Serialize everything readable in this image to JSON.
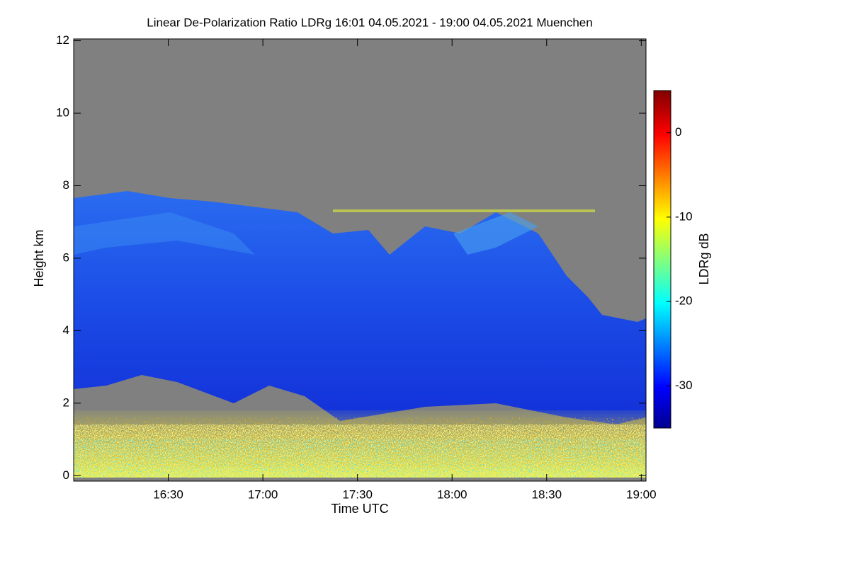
{
  "chart_data": {
    "type": "heatmap",
    "title": "Linear De-Polarization Ratio LDRg   16:01 04.05.2021 - 19:00 04.05.2021 Muenchen",
    "x_label": "Time UTC",
    "y_label": "Height km",
    "xlim": [
      960,
      1141.5
    ],
    "xticks": [
      {
        "value": 990,
        "label": "16:30"
      },
      {
        "value": 1020,
        "label": "17:00"
      },
      {
        "value": 1050,
        "label": "17:30"
      },
      {
        "value": 1080,
        "label": "18:00"
      },
      {
        "value": 1110,
        "label": "18:30"
      },
      {
        "value": 1140,
        "label": "19:00"
      }
    ],
    "ylim": [
      -0.15,
      12.05
    ],
    "yticks": [
      0,
      2,
      4,
      6,
      8,
      10,
      12
    ],
    "colorbar": {
      "label": "LDRg dB",
      "zlim": [
        -35,
        5
      ],
      "zticks": [
        0,
        -10,
        -20,
        -30
      ],
      "colormap": "jet"
    },
    "missing_color": "#808080"
  }
}
